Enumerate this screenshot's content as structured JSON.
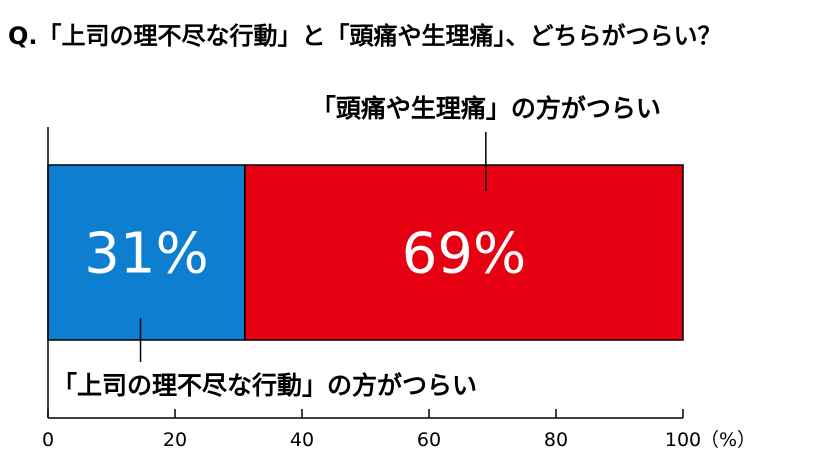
{
  "chart_data": {
    "type": "bar",
    "orientation": "horizontal",
    "stacked": true,
    "title": "Q.「上司の理不尽な行動」と「頭痛や生理痛」、どちらがつらい？",
    "series": [
      {
        "name": "「上司の理不尽な行動」の方がつらい",
        "value": 31,
        "label": "31%",
        "color": "#0e7fd0",
        "callout_position": "bottom"
      },
      {
        "name": "「頭痛や生理痛」の方がつらい",
        "value": 69,
        "label": "69%",
        "color": "#e60012",
        "callout_position": "top"
      }
    ],
    "x_ticks": [
      "0",
      "20",
      "40",
      "60",
      "80",
      "100"
    ],
    "xlim": [
      0,
      100
    ],
    "x_unit": "（%）",
    "grid": false,
    "legend": "callouts"
  }
}
